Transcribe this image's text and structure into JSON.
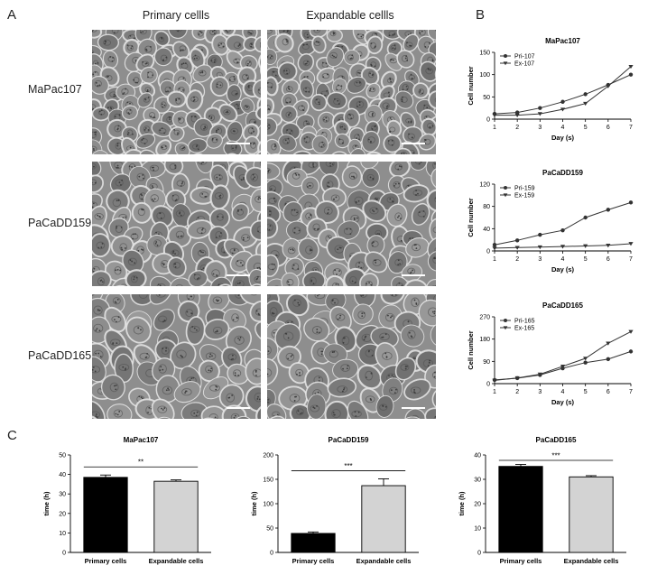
{
  "panel_letters": {
    "a": "A",
    "b": "B",
    "c": "C"
  },
  "micrographs": {
    "col_headers": [
      "Primary cellls",
      "Expandable cellls"
    ],
    "row_labels": [
      "MaPac107",
      "PaCaDD159",
      "PaCaDD165"
    ]
  },
  "chart_data": [
    {
      "type": "line",
      "panel": "B",
      "title": "MaPac107",
      "xlabel": "Day (s)",
      "ylabel": "Cell number",
      "x": [
        1,
        2,
        3,
        4,
        5,
        6,
        7
      ],
      "xlim": [
        1,
        7
      ],
      "ylim": [
        0,
        150
      ],
      "yticks": [
        0,
        50,
        100,
        150
      ],
      "legend_position": "top-left",
      "series": [
        {
          "name": "Pri-107",
          "marker": "circle",
          "values": [
            12,
            15,
            25,
            39,
            56,
            77,
            100
          ]
        },
        {
          "name": "Ex-107",
          "marker": "triangle-down",
          "values": [
            9,
            9,
            12,
            22,
            35,
            74,
            118
          ]
        }
      ]
    },
    {
      "type": "line",
      "panel": "B",
      "title": "PaCaDD159",
      "xlabel": "Day (s)",
      "ylabel": "Cell number",
      "x": [
        1,
        2,
        3,
        4,
        5,
        6,
        7
      ],
      "xlim": [
        1,
        7
      ],
      "ylim": [
        0,
        120
      ],
      "yticks": [
        0,
        40,
        80,
        120
      ],
      "legend_position": "top-left",
      "series": [
        {
          "name": "Pri-159",
          "marker": "circle",
          "values": [
            11,
            19,
            29,
            37,
            60,
            74,
            87
          ]
        },
        {
          "name": "Ex-159",
          "marker": "triangle-down",
          "values": [
            5,
            6,
            7,
            8,
            9,
            10,
            13
          ]
        }
      ]
    },
    {
      "type": "line",
      "panel": "B",
      "title": "PaCaDD165",
      "xlabel": "Day (s)",
      "ylabel": "Cell number",
      "x": [
        1,
        2,
        3,
        4,
        5,
        6,
        7
      ],
      "xlim": [
        1,
        7
      ],
      "ylim": [
        0,
        270
      ],
      "yticks": [
        0,
        90,
        180,
        270
      ],
      "legend_position": "top-left",
      "series": [
        {
          "name": "Pri-165",
          "marker": "circle",
          "values": [
            15,
            22,
            35,
            62,
            85,
            99,
            130
          ]
        },
        {
          "name": "Ex-165",
          "marker": "triangle-down",
          "values": [
            13,
            23,
            38,
            70,
            102,
            163,
            210
          ]
        }
      ]
    },
    {
      "type": "bar",
      "panel": "C",
      "title": "MaPac107",
      "ylabel": "time (h)",
      "categories": [
        "Primary cells",
        "Expandable cells"
      ],
      "values": [
        38.5,
        36.5
      ],
      "errors": [
        1.2,
        0.7
      ],
      "ylim": [
        0,
        50
      ],
      "yticks": [
        0,
        10,
        20,
        30,
        40,
        50
      ],
      "significance": "**",
      "colors": [
        "#000000",
        "#d3d3d3"
      ]
    },
    {
      "type": "bar",
      "panel": "C",
      "title": "PaCaDD159",
      "ylabel": "time (h)",
      "categories": [
        "Primary cells",
        "Expandable cells"
      ],
      "values": [
        39,
        137
      ],
      "errors": [
        3,
        14
      ],
      "ylim": [
        0,
        200
      ],
      "yticks": [
        0,
        50,
        100,
        150,
        200
      ],
      "significance": "***",
      "colors": [
        "#000000",
        "#d3d3d3"
      ]
    },
    {
      "type": "bar",
      "panel": "C",
      "title": "PaCaDD165",
      "ylabel": "time (h)",
      "categories": [
        "Primary cells",
        "Expandable cells"
      ],
      "values": [
        35.3,
        31
      ],
      "errors": [
        0.8,
        0.5
      ],
      "ylim": [
        0,
        40
      ],
      "yticks": [
        0,
        10,
        20,
        30,
        40
      ],
      "significance": "***",
      "colors": [
        "#000000",
        "#d3d3d3"
      ]
    }
  ]
}
